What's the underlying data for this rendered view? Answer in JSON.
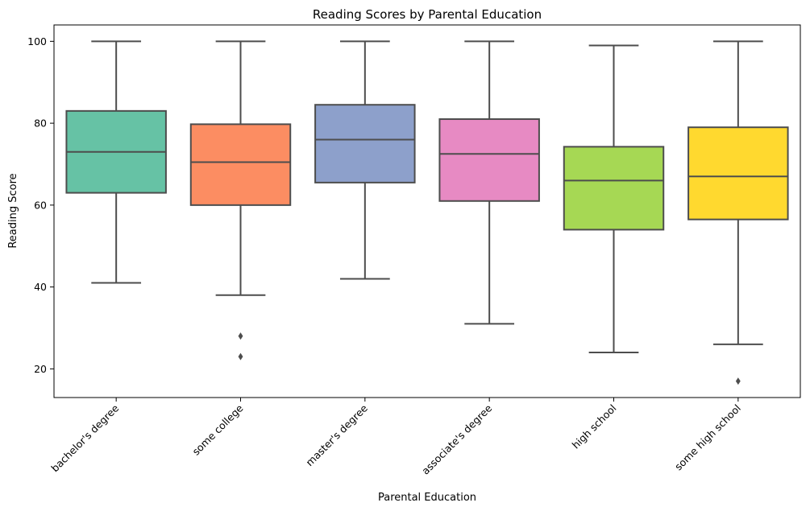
{
  "chart_data": {
    "type": "box",
    "title": "Reading Scores by Parental Education",
    "xlabel": "Parental Education",
    "ylabel": "Reading Score",
    "ylim": [
      13,
      104
    ],
    "yticks": [
      20,
      40,
      60,
      80,
      100
    ],
    "grid": false,
    "categories": [
      "bachelor's degree",
      "some college",
      "master's degree",
      "associate's degree",
      "high school",
      "some high school"
    ],
    "colors": [
      "#66c2a5",
      "#fc8d62",
      "#8da0cb",
      "#e78ac3",
      "#a6d854",
      "#ffd92f"
    ],
    "boxes": [
      {
        "min": 41,
        "q1": 63,
        "median": 73,
        "q3": 83,
        "max": 100,
        "outliers": []
      },
      {
        "min": 38,
        "q1": 60,
        "median": 70.5,
        "q3": 79.75,
        "max": 100,
        "outliers": [
          28,
          23
        ]
      },
      {
        "min": 42,
        "q1": 65.5,
        "median": 76,
        "q3": 84.5,
        "max": 100,
        "outliers": []
      },
      {
        "min": 31,
        "q1": 61,
        "median": 72.5,
        "q3": 81,
        "max": 100,
        "outliers": []
      },
      {
        "min": 24,
        "q1": 54,
        "median": 66,
        "q3": 74.25,
        "max": 99,
        "outliers": []
      },
      {
        "min": 26,
        "q1": 56.5,
        "median": 67,
        "q3": 79,
        "max": 100,
        "outliers": [
          17
        ]
      }
    ]
  }
}
